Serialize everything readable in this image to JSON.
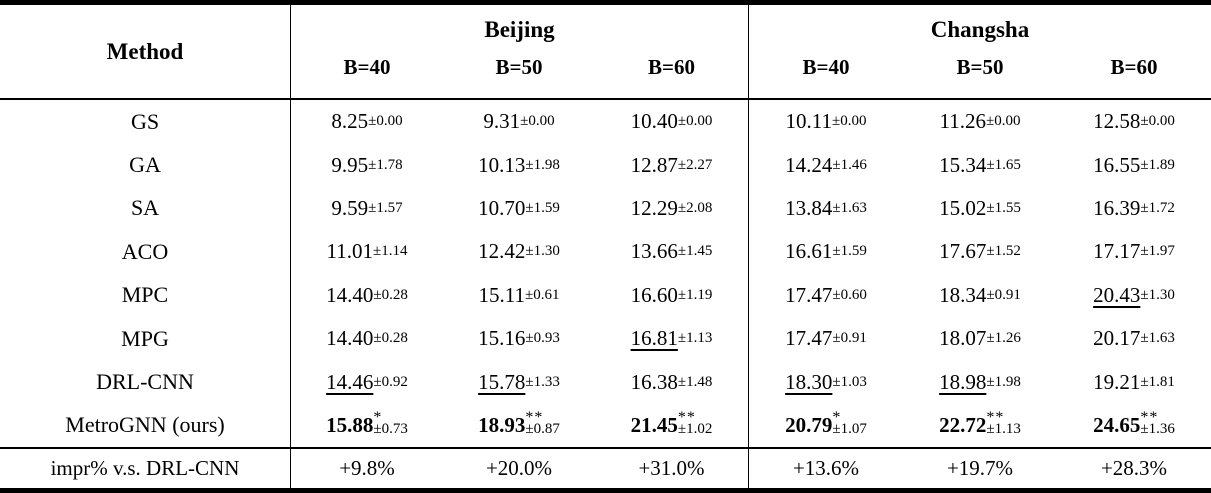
{
  "table": {
    "method_header": "Method",
    "groups": [
      {
        "label": "Beijing",
        "cols": [
          "B=40",
          "B=50",
          "B=60"
        ]
      },
      {
        "label": "Changsha",
        "cols": [
          "B=40",
          "B=50",
          "B=60"
        ]
      }
    ],
    "rows": [
      {
        "method": "GS",
        "cells": [
          {
            "v": "8.25",
            "pm": "±0.00"
          },
          {
            "v": "9.31",
            "pm": "±0.00"
          },
          {
            "v": "10.40",
            "pm": "±0.00"
          },
          {
            "v": "10.11",
            "pm": "±0.00"
          },
          {
            "v": "11.26",
            "pm": "±0.00"
          },
          {
            "v": "12.58",
            "pm": "±0.00"
          }
        ]
      },
      {
        "method": "GA",
        "cells": [
          {
            "v": "9.95",
            "pm": "±1.78"
          },
          {
            "v": "10.13",
            "pm": "±1.98"
          },
          {
            "v": "12.87",
            "pm": "±2.27"
          },
          {
            "v": "14.24",
            "pm": "±1.46"
          },
          {
            "v": "15.34",
            "pm": "±1.65"
          },
          {
            "v": "16.55",
            "pm": "±1.89"
          }
        ]
      },
      {
        "method": "SA",
        "cells": [
          {
            "v": "9.59",
            "pm": "±1.57"
          },
          {
            "v": "10.70",
            "pm": "±1.59"
          },
          {
            "v": "12.29",
            "pm": "±2.08"
          },
          {
            "v": "13.84",
            "pm": "±1.63"
          },
          {
            "v": "15.02",
            "pm": "±1.55"
          },
          {
            "v": "16.39",
            "pm": "±1.72"
          }
        ]
      },
      {
        "method": "ACO",
        "cells": [
          {
            "v": "11.01",
            "pm": "±1.14"
          },
          {
            "v": "12.42",
            "pm": "±1.30"
          },
          {
            "v": "13.66",
            "pm": "±1.45"
          },
          {
            "v": "16.61",
            "pm": "±1.59"
          },
          {
            "v": "17.67",
            "pm": "±1.52"
          },
          {
            "v": "17.17",
            "pm": "±1.97"
          }
        ]
      },
      {
        "method": "MPC",
        "cells": [
          {
            "v": "14.40",
            "pm": "±0.28"
          },
          {
            "v": "15.11",
            "pm": "±0.61"
          },
          {
            "v": "16.60",
            "pm": "±1.19"
          },
          {
            "v": "17.47",
            "pm": "±0.60"
          },
          {
            "v": "18.34",
            "pm": "±0.91"
          },
          {
            "v": "20.43",
            "pm": "±1.30",
            "u": true
          }
        ]
      },
      {
        "method": "MPG",
        "cells": [
          {
            "v": "14.40",
            "pm": "±0.28"
          },
          {
            "v": "15.16",
            "pm": "±0.93"
          },
          {
            "v": "16.81",
            "pm": "±1.13",
            "u": true
          },
          {
            "v": "17.47",
            "pm": "±0.91"
          },
          {
            "v": "18.07",
            "pm": "±1.26"
          },
          {
            "v": "20.17",
            "pm": "±1.63"
          }
        ]
      },
      {
        "method": "DRL-CNN",
        "cells": [
          {
            "v": "14.46",
            "pm": "±0.92",
            "u": true
          },
          {
            "v": "15.78",
            "pm": "±1.33",
            "u": true
          },
          {
            "v": "16.38",
            "pm": "±1.48"
          },
          {
            "v": "18.30",
            "pm": "±1.03",
            "u": true
          },
          {
            "v": "18.98",
            "pm": "±1.98",
            "u": true
          },
          {
            "v": "19.21",
            "pm": "±1.81"
          }
        ]
      },
      {
        "method": "MetroGNN (ours)",
        "cells": [
          {
            "v": "15.88",
            "pm": "±0.73",
            "b": true,
            "s": "*"
          },
          {
            "v": "18.93",
            "pm": "±0.87",
            "b": true,
            "s": "**"
          },
          {
            "v": "21.45",
            "pm": "±1.02",
            "b": true,
            "s": "**"
          },
          {
            "v": "20.79",
            "pm": "±1.07",
            "b": true,
            "s": "*"
          },
          {
            "v": "22.72",
            "pm": "±1.13",
            "b": true,
            "s": "**"
          },
          {
            "v": "24.65",
            "pm": "±1.36",
            "b": true,
            "s": "**"
          }
        ]
      }
    ],
    "footer": {
      "label": "impr% v.s. DRL-CNN",
      "values": [
        "+9.8%",
        "+20.0%",
        "+31.0%",
        "+13.6%",
        "+19.7%",
        "+28.3%"
      ]
    }
  }
}
